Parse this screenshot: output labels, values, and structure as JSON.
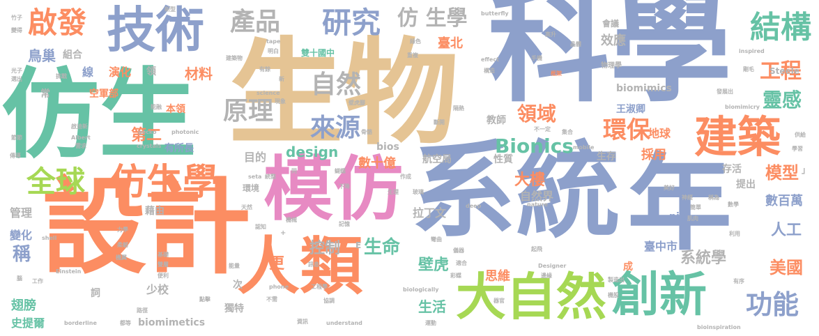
{
  "palette": {
    "blue": "#8da0cb",
    "orange": "#fc8d62",
    "teal": "#66c2a5",
    "pink": "#e78ac3",
    "lime": "#a6d854",
    "tan": "#e5c494",
    "gray": "#b3b3b3",
    "yellow": "#ffd92f"
  },
  "words": [
    {
      "text": "科學",
      "color": "#8da0cb",
      "size": 175
    },
    {
      "text": "生物",
      "color": "#e5c494",
      "size": 165
    },
    {
      "text": "系統",
      "color": "#8da0cb",
      "size": 150
    },
    {
      "text": "設計",
      "color": "#fc8d62",
      "size": 150
    },
    {
      "text": "仿生",
      "color": "#66c2a5",
      "size": 140
    },
    {
      "text": "年",
      "color": "#8da0cb",
      "size": 150
    },
    {
      "text": "模仿",
      "color": "#e78ac3",
      "size": 100
    },
    {
      "text": "人類",
      "color": "#fc8d62",
      "size": 90
    },
    {
      "text": "技術",
      "color": "#8da0cb",
      "size": 70
    },
    {
      "text": "大自然",
      "color": "#a6d854",
      "size": 72
    },
    {
      "text": "創新",
      "color": "#66c2a5",
      "size": 68
    },
    {
      "text": "建築",
      "color": "#fc8d62",
      "size": 62
    },
    {
      "text": "仿生學",
      "color": "#fc8d62",
      "size": 52
    },
    {
      "text": "全球",
      "color": "#a6d854",
      "size": 42
    },
    {
      "text": "啟發",
      "color": "#fc8d62",
      "size": 42
    },
    {
      "text": "結構",
      "color": "#66c2a5",
      "size": 44
    },
    {
      "text": "研究",
      "color": "#8da0cb",
      "size": 42
    },
    {
      "text": "產品",
      "color": "#b3b3b3",
      "size": 36
    },
    {
      "text": "仿 生學",
      "color": "#b3b3b3",
      "size": 30
    },
    {
      "text": "原理",
      "color": "#b3b3b3",
      "size": 36
    },
    {
      "text": "來源",
      "color": "#8da0cb",
      "size": 36
    },
    {
      "text": "自然",
      "color": "#b3b3b3",
      "size": 36
    },
    {
      "text": "環保",
      "color": "#fc8d62",
      "size": 34
    },
    {
      "text": "Bionics",
      "color": "#66c2a5",
      "size": 28
    },
    {
      "text": "功能",
      "color": "#8da0cb",
      "size": 38
    },
    {
      "text": "工程",
      "color": "#fc8d62",
      "size": 30
    },
    {
      "text": "靈感",
      "color": "#66c2a5",
      "size": 28
    },
    {
      "text": "領域",
      "color": "#fc8d62",
      "size": 28
    },
    {
      "text": "效應",
      "color": "#b3b3b3",
      "size": 18
    },
    {
      "text": "臺北",
      "color": "#fc8d62",
      "size": 18
    },
    {
      "text": "材料",
      "color": "#fc8d62",
      "size": 20
    },
    {
      "text": "鳥巢",
      "color": "#8da0cb",
      "size": 20
    },
    {
      "text": "組合",
      "color": "#b3b3b3",
      "size": 14
    },
    {
      "text": "第二",
      "color": "#fc8d62",
      "size": 22
    },
    {
      "text": "design",
      "color": "#66c2a5",
      "size": 20
    },
    {
      "text": "數十億",
      "color": "#fc8d62",
      "size": 18
    },
    {
      "text": "目的",
      "color": "#b3b3b3",
      "size": 16
    },
    {
      "text": "大樓",
      "color": "#fc8d62",
      "size": 22
    },
    {
      "text": "自然界",
      "color": "#b3b3b3",
      "size": 16
    },
    {
      "text": "模型",
      "color": "#fc8d62",
      "size": 24
    },
    {
      "text": "數百萬",
      "color": "#8da0cb",
      "size": 18
    },
    {
      "text": "人工",
      "color": "#8da0cb",
      "size": 22
    },
    {
      "text": "生命",
      "color": "#66c2a5",
      "size": 26
    },
    {
      "text": "控制",
      "color": "#b3b3b3",
      "size": 22
    },
    {
      "text": "壁虎",
      "color": "#66c2a5",
      "size": 22
    },
    {
      "text": "思維",
      "color": "#fc8d62",
      "size": 18
    },
    {
      "text": "系統學",
      "color": "#b3b3b3",
      "size": 22
    },
    {
      "text": "美國",
      "color": "#fc8d62",
      "size": 24
    },
    {
      "text": "生活",
      "color": "#66c2a5",
      "size": 20
    },
    {
      "text": "拉丁文",
      "color": "#b3b3b3",
      "size": 16
    },
    {
      "text": "臺中市",
      "color": "#8da0cb",
      "size": 16
    },
    {
      "text": "翅膀",
      "color": "#66c2a5",
      "size": 18
    },
    {
      "text": "史提爾",
      "color": "#66c2a5",
      "size": 16
    },
    {
      "text": "管理",
      "color": "#b3b3b3",
      "size": 16
    },
    {
      "text": "變化",
      "color": "#8da0cb",
      "size": 16
    },
    {
      "text": "稱",
      "color": "#8da0cb",
      "size": 26
    },
    {
      "text": "更",
      "color": "#fc8d62",
      "size": 22
    },
    {
      "text": "獨特",
      "color": "#b3b3b3",
      "size": 14
    },
    {
      "text": "少校",
      "color": "#b3b3b3",
      "size": 16
    },
    {
      "text": "biomimetics",
      "color": "#b3b3b3",
      "size": 14
    },
    {
      "text": "biomimics",
      "color": "#b3b3b3",
      "size": 14
    },
    {
      "text": "王淑卿",
      "color": "#8da0cb",
      "size": 14
    },
    {
      "text": "地球",
      "color": "#fc8d62",
      "size": 16
    },
    {
      "text": "生存",
      "color": "#b3b3b3",
      "size": 14
    },
    {
      "text": "存活",
      "color": "#b3b3b3",
      "size": 14
    },
    {
      "text": "提出",
      "color": "#b3b3b3",
      "size": 14
    },
    {
      "text": "採用",
      "color": "#fc8d62",
      "size": 18
    },
    {
      "text": "性質",
      "color": "#b3b3b3",
      "size": 14
    },
    {
      "text": "航空局",
      "color": "#b3b3b3",
      "size": 14
    },
    {
      "text": "bios",
      "color": "#b3b3b3",
      "size": 14
    },
    {
      "text": "教師",
      "color": "#b3b3b3",
      "size": 14
    },
    {
      "text": "有所長",
      "color": "#8da0cb",
      "size": 14
    },
    {
      "text": "本領",
      "color": "#fc8d62",
      "size": 14
    },
    {
      "text": "空軍部",
      "color": "#fc8d62",
      "size": 14
    },
    {
      "text": "演化",
      "color": "#fc8d62",
      "size": 16
    },
    {
      "text": "線",
      "color": "#8da0cb",
      "size": 16
    },
    {
      "text": "領",
      "color": "#b3b3b3",
      "size": 14
    },
    {
      "text": "常",
      "color": "#b3b3b3",
      "size": 14
    },
    {
      "text": "雙十國中",
      "color": "#66c2a5",
      "size": 12
    },
    {
      "text": "環境",
      "color": "#b3b3b3",
      "size": 12
    },
    {
      "text": "藉由",
      "color": "#b3b3b3",
      "size": 14
    },
    {
      "text": "nic",
      "color": "#8da0cb",
      "size": 14
    },
    {
      "text": "Steele",
      "color": "#b3b3b3",
      "size": 12
    },
    {
      "text": "成",
      "color": "#fc8d62",
      "size": 14
    },
    {
      "text": "次",
      "color": "#b3b3b3",
      "size": 14
    },
    {
      "text": "詞",
      "color": "#b3b3b3",
      "size": 14
    },
    {
      "text": "會議",
      "color": "#b3b3b3",
      "size": 12
    },
    {
      "text": "高升",
      "color": "#b3b3b3",
      "size": 8
    },
    {
      "text": "晶體",
      "color": "#b3b3b3",
      "size": 8
    },
    {
      "text": "手機",
      "color": "#b3b3b3",
      "size": 8
    },
    {
      "text": "框架",
      "color": "#fc8d62",
      "size": 8
    },
    {
      "text": "物理學",
      "color": "#b3b3b3",
      "size": 10
    },
    {
      "text": "剛毛",
      "color": "#b3b3b3",
      "size": 8
    },
    {
      "text": "inspired",
      "color": "#b3b3b3",
      "size": 8
    },
    {
      "text": "butterfly",
      "color": "#b3b3b3",
      "size": 8
    },
    {
      "text": "effect",
      "color": "#b3b3b3",
      "size": 8
    },
    {
      "text": "構造",
      "color": "#b3b3b3",
      "size": 8
    },
    {
      "text": "重複",
      "color": "#b3b3b3",
      "size": 8
    },
    {
      "text": "綠色",
      "color": "#b3b3b3",
      "size": 8
    },
    {
      "text": "biomimicry",
      "color": "#b3b3b3",
      "size": 8
    },
    {
      "text": "發展出",
      "color": "#b3b3b3",
      "size": 8
    },
    {
      "text": "隔熱",
      "color": "#b3b3b3",
      "size": 8
    },
    {
      "text": "斷開",
      "color": "#b3b3b3",
      "size": 8
    },
    {
      "text": "不一定",
      "color": "#b3b3b3",
      "size": 8
    },
    {
      "text": "集合",
      "color": "#b3b3b3",
      "size": 8
    },
    {
      "text": "mobile",
      "color": "#b3b3b3",
      "size": 8
    },
    {
      "text": "供給",
      "color": "#b3b3b3",
      "size": 8
    },
    {
      "text": "學習",
      "color": "#b3b3b3",
      "size": 8
    },
    {
      "text": "稱為",
      "color": "#b3b3b3",
      "size": 8
    },
    {
      "text": "神經",
      "color": "#b3b3b3",
      "size": 8
    },
    {
      "text": "美好",
      "color": "#b3b3b3",
      "size": 8
    },
    {
      "text": "簡單",
      "color": "#b3b3b3",
      "size": 8
    },
    {
      "text": "數學",
      "color": "#b3b3b3",
      "size": 8
    },
    {
      "text": "肌肉",
      "color": "#b3b3b3",
      "size": 8
    },
    {
      "text": "利用",
      "color": "#b3b3b3",
      "size": 8
    },
    {
      "text": "起飛",
      "color": "#b3b3b3",
      "size": 8
    },
    {
      "text": "製造出",
      "color": "#b3b3b3",
      "size": 8
    },
    {
      "text": "有序",
      "color": "#b3b3b3",
      "size": 8
    },
    {
      "text": "機股",
      "color": "#b3b3b3",
      "size": 8
    },
    {
      "text": "bioinspiration",
      "color": "#b3b3b3",
      "size": 8
    },
    {
      "text": "Designer",
      "color": "#b3b3b3",
      "size": 8
    },
    {
      "text": "nature",
      "color": "#b3b3b3",
      "size": 8
    },
    {
      "text": "deep",
      "color": "#b3b3b3",
      "size": 8
    },
    {
      "text": "彎曲",
      "color": "#b3b3b3",
      "size": 8
    },
    {
      "text": "儀器",
      "color": "#b3b3b3",
      "size": 8
    },
    {
      "text": "適合",
      "color": "#b3b3b3",
      "size": 8
    },
    {
      "text": "彩蝶",
      "color": "#b3b3b3",
      "size": 8
    },
    {
      "text": "邊緣",
      "color": "#b3b3b3",
      "size": 8
    },
    {
      "text": "器官",
      "color": "#b3b3b3",
      "size": 8
    },
    {
      "text": "運動",
      "color": "#b3b3b3",
      "size": 8
    },
    {
      "text": "understand",
      "color": "#b3b3b3",
      "size": 8
    },
    {
      "text": "biologically",
      "color": "#b3b3b3",
      "size": 8
    },
    {
      "text": "協調",
      "color": "#b3b3b3",
      "size": 8
    },
    {
      "text": "資訊",
      "color": "#b3b3b3",
      "size": 8
    },
    {
      "text": "訊息",
      "color": "#b3b3b3",
      "size": 8
    },
    {
      "text": "記憶",
      "color": "#b3b3b3",
      "size": 8
    },
    {
      "text": "工程學",
      "color": "#b3b3b3",
      "size": 8
    },
    {
      "text": "phone",
      "color": "#b3b3b3",
      "size": 8
    },
    {
      "text": "不需",
      "color": "#b3b3b3",
      "size": 8
    },
    {
      "text": "機械",
      "color": "#b3b3b3",
      "size": 8
    },
    {
      "text": "認知",
      "color": "#b3b3b3",
      "size": 8
    },
    {
      "text": "能量",
      "color": "#b3b3b3",
      "size": 8
    },
    {
      "text": "點擊",
      "color": "#b3b3b3",
      "size": 8
    },
    {
      "text": "都等",
      "color": "#b3b3b3",
      "size": 8
    },
    {
      "text": "borderline",
      "color": "#b3b3b3",
      "size": 8
    },
    {
      "text": "路徑",
      "color": "#b3b3b3",
      "size": 8
    },
    {
      "text": "Einstein",
      "color": "#b3b3b3",
      "size": 8
    },
    {
      "text": "工作",
      "color": "#b3b3b3",
      "size": 8
    },
    {
      "text": "雙層",
      "color": "#b3b3b3",
      "size": 8
    },
    {
      "text": "便利",
      "color": "#b3b3b3",
      "size": 8
    },
    {
      "text": "腦",
      "color": "#b3b3b3",
      "size": 8
    },
    {
      "text": "基礎",
      "color": "#b3b3b3",
      "size": 8
    },
    {
      "text": "機翼",
      "color": "#b3b3b3",
      "size": 8
    },
    {
      "text": "柔韌",
      "color": "#b3b3b3",
      "size": 8
    },
    {
      "text": "shell",
      "color": "#b3b3b3",
      "size": 8
    },
    {
      "text": "力學",
      "color": "#b3b3b3",
      "size": 8
    },
    {
      "text": "天然",
      "color": "#b3b3b3",
      "size": 8
    },
    {
      "text": "統整",
      "color": "#b3b3b3",
      "size": 8
    },
    {
      "text": "seta",
      "color": "#b3b3b3",
      "size": 8
    },
    {
      "text": "作成",
      "color": "#b3b3b3",
      "size": 8
    },
    {
      "text": "玻璃",
      "color": "#b3b3b3",
      "size": 8
    },
    {
      "text": "生理",
      "color": "#b3b3b3",
      "size": 8
    },
    {
      "text": "下降",
      "color": "#b3b3b3",
      "size": 8
    },
    {
      "text": "蝴蝶",
      "color": "#b3b3b3",
      "size": 8
    },
    {
      "text": "同",
      "color": "#b3b3b3",
      "size": 8
    },
    {
      "text": "骨骼",
      "color": "#b3b3b3",
      "size": 8
    },
    {
      "text": "crystals",
      "color": "#b3b3b3",
      "size": 8
    },
    {
      "text": "photonic",
      "color": "#b3b3b3",
      "size": 8
    },
    {
      "text": "gecko",
      "color": "#b3b3b3",
      "size": 8
    },
    {
      "text": "需求",
      "color": "#b3b3b3",
      "size": 8
    },
    {
      "text": "Albert",
      "color": "#b3b3b3",
      "size": 8
    },
    {
      "text": "啟迪新",
      "color": "#b3b3b3",
      "size": 8
    },
    {
      "text": "能融",
      "color": "#b3b3b3",
      "size": 8
    },
    {
      "text": "傳導",
      "color": "#b3b3b3",
      "size": 8
    },
    {
      "text": "節節",
      "color": "#b3b3b3",
      "size": 8
    },
    {
      "text": "選出",
      "color": "#b3b3b3",
      "size": 8
    },
    {
      "text": "光子",
      "color": "#b3b3b3",
      "size": 8
    },
    {
      "text": "挑戰",
      "color": "#b3b3b3",
      "size": 8
    },
    {
      "text": "變得",
      "color": "#b3b3b3",
      "size": 8
    },
    {
      "text": "竹子",
      "color": "#b3b3b3",
      "size": 8
    },
    {
      "text": "新型",
      "color": "#b3b3b3",
      "size": 8
    },
    {
      "text": "tape",
      "color": "#b3b3b3",
      "size": 8
    },
    {
      "text": "明白",
      "color": "#b3b3b3",
      "size": 8
    },
    {
      "text": "建築物",
      "color": "#b3b3b3",
      "size": 8
    },
    {
      "text": "有餘",
      "color": "#b3b3b3",
      "size": 8
    },
    {
      "text": "新",
      "color": "#b3b3b3",
      "size": 8
    },
    {
      "text": "science",
      "color": "#b3b3b3",
      "size": 8
    },
    {
      "text": "壁虎腳",
      "color": "#b3b3b3",
      "size": 8
    },
    {
      "text": "現象",
      "color": "#b3b3b3",
      "size": 8
    },
    {
      "text": "E",
      "color": "#b3b3b3",
      "size": 12
    },
    {
      "text": "+",
      "color": "#b3b3b3",
      "size": 10
    },
    {
      "text": "」",
      "color": "#b3b3b3",
      "size": 12
    }
  ]
}
